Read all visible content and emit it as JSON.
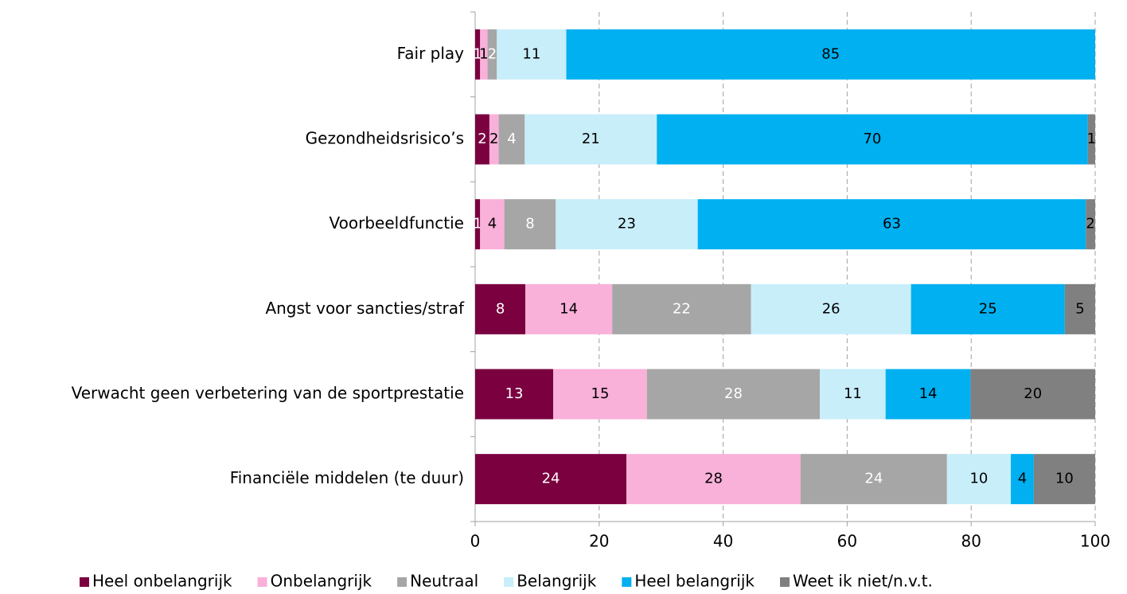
{
  "chart_data": {
    "type": "stacked_bar_horizontal",
    "categories": [
      "Fair play",
      "Gezondheidsrisico’s",
      "Voorbeeldfunctie",
      "Angst voor sancties/straf",
      "Verwacht geen verbetering van de sportprestatie",
      "Financiële middelen (te duur)"
    ],
    "series": [
      {
        "name": "Heel onbelangrijk",
        "color": "#7a0040",
        "label_color": "#ffffff",
        "values": [
          0.8,
          2.3,
          0.8,
          8.1,
          12.6,
          24.4
        ],
        "value_labels": [
          "1",
          "2",
          "1",
          "8",
          "13",
          "24"
        ]
      },
      {
        "name": "Onbelangrijk",
        "color": "#f9b0d9",
        "label_color": "#000000",
        "values": [
          1.2,
          1.5,
          3.9,
          14.0,
          15.1,
          28.1
        ],
        "value_labels": [
          "1",
          "2",
          "4",
          "14",
          "15",
          "28"
        ]
      },
      {
        "name": "Neutraal",
        "color": "#a6a6a6",
        "label_color": "#ffffff",
        "values": [
          1.5,
          4.2,
          8.3,
          22.4,
          27.9,
          23.6
        ],
        "value_labels": [
          "2",
          "4",
          "8",
          "22",
          "28",
          "24"
        ]
      },
      {
        "name": "Belangrijk",
        "color": "#c8eefa",
        "label_color": "#000000",
        "values": [
          11.2,
          21.3,
          22.9,
          25.8,
          10.6,
          10.3
        ],
        "value_labels": [
          "11",
          "21",
          "23",
          "26",
          "11",
          "10"
        ]
      },
      {
        "name": "Heel belangrijk",
        "color": "#00b0f0",
        "label_color": "#000000",
        "values": [
          85.3,
          69.5,
          62.6,
          24.8,
          13.7,
          3.7
        ],
        "value_labels": [
          "85",
          "70",
          "63",
          "25",
          "14",
          "4"
        ]
      },
      {
        "name": "Weet ik niet/n.v.t.",
        "color": "#808080",
        "label_color": "#000000",
        "values": [
          null,
          1.2,
          1.5,
          4.9,
          20.1,
          9.9
        ],
        "value_labels": [
          null,
          "1",
          "2",
          "5",
          "20",
          "10"
        ]
      }
    ],
    "xlim": [
      0,
      100
    ],
    "xticks": [
      0,
      20,
      40,
      60,
      80,
      100
    ],
    "grid": true,
    "legend": "bottom"
  }
}
